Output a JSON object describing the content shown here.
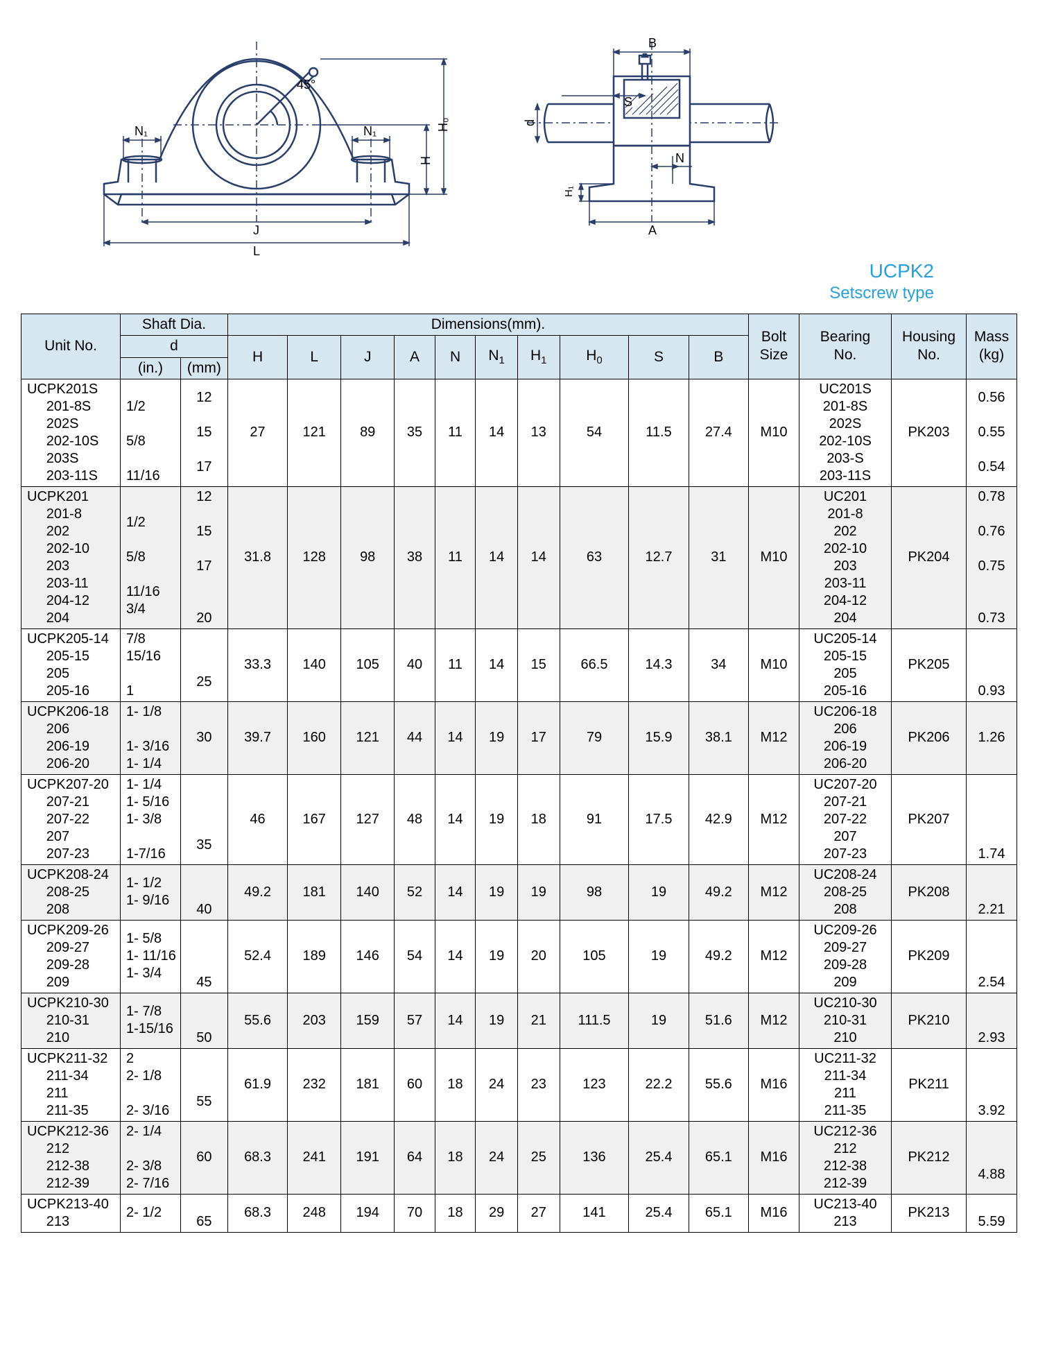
{
  "product": {
    "model": "UCPK2",
    "type": "Setscrew type",
    "model_color": "#29a0d8"
  },
  "diagram": {
    "line_color": "#2a3e6a",
    "line_width": 2,
    "front": {
      "labels": [
        "N1",
        "N1",
        "45°",
        "H",
        "H0",
        "J",
        "L"
      ]
    },
    "side": {
      "labels": [
        "B",
        "S",
        "N",
        "d",
        "A",
        "H1"
      ]
    }
  },
  "table": {
    "header_bg": "#d6e7f2",
    "alt_row_bg": "#f0f0f0",
    "headers": {
      "unit_no": "Unit No.",
      "shaft_dia": "Shaft Dia.",
      "d": "d",
      "in": "(in.)",
      "mm": "(mm)",
      "dimensions": "Dimensions(mm).",
      "dim_cols": [
        "H",
        "L",
        "J",
        "A",
        "N",
        "N1",
        "H1",
        "H0",
        "S",
        "B"
      ],
      "bolt_size": "Bolt\nSize",
      "bearing_no": "Bearing\nNo.",
      "housing_no": "Housing\nNo.",
      "mass": "Mass\n(kg)"
    },
    "rows": [
      {
        "unit": "UCPK201S\n     201-8S\n     202S\n     202-10S\n     203S\n     203-11S",
        "in": "\n1/2\n\n5/8\n\n11/16",
        "mm": "12\n\n15\n\n17\n",
        "dims": [
          "27",
          "121",
          "89",
          "35",
          "11",
          "14",
          "13",
          "54",
          "11.5",
          "27.4"
        ],
        "bolt": "M10",
        "bearing": "UC201S\n201-8S\n202S\n202-10S\n203-S\n203-11S",
        "housing": "PK203",
        "mass": "0.56\n\n0.55\n\n0.54\n"
      },
      {
        "unit": "UCPK201\n     201-8\n     202\n     202-10\n     203\n     203-11\n     204-12\n     204",
        "in": "\n1/2\n\n5/8\n\n11/16\n3/4\n",
        "mm": "12\n\n15\n\n17\n\n\n20",
        "dims": [
          "31.8",
          "128",
          "98",
          "38",
          "11",
          "14",
          "14",
          "63",
          "12.7",
          "31"
        ],
        "bolt": "M10",
        "bearing": "UC201\n201-8\n202\n202-10\n203\n203-11\n204-12\n204",
        "housing": "PK204",
        "mass": "0.78\n\n0.76\n\n0.75\n\n\n0.73"
      },
      {
        "unit": "UCPK205-14\n     205-15\n     205\n     205-16",
        "in": "7/8\n15/16\n\n1",
        "mm": "\n\n25\n",
        "dims": [
          "33.3",
          "140",
          "105",
          "40",
          "11",
          "14",
          "15",
          "66.5",
          "14.3",
          "34"
        ],
        "bolt": "M10",
        "bearing": "UC205-14\n205-15\n205\n205-16",
        "housing": "PK205",
        "mass": "\n\n\n0.93"
      },
      {
        "unit": "UCPK206-18\n     206\n     206-19\n     206-20",
        "in": "1- 1/8\n\n1- 3/16\n1- 1/4",
        "mm": "\n30\n\n",
        "dims": [
          "39.7",
          "160",
          "121",
          "44",
          "14",
          "19",
          "17",
          "79",
          "15.9",
          "38.1"
        ],
        "bolt": "M12",
        "bearing": "UC206-18\n206\n206-19\n206-20",
        "housing": "PK206",
        "mass": "\n1.26\n\n"
      },
      {
        "unit": "UCPK207-20\n     207-21\n     207-22\n     207\n     207-23",
        "in": "1- 1/4\n1- 5/16\n1- 3/8\n\n1-7/16",
        "mm": "\n\n\n35\n",
        "dims": [
          "46",
          "167",
          "127",
          "48",
          "14",
          "19",
          "18",
          "91",
          "17.5",
          "42.9"
        ],
        "bolt": "M12",
        "bearing": "UC207-20\n207-21\n207-22\n207\n207-23",
        "housing": "PK207",
        "mass": "\n\n\n\n1.74"
      },
      {
        "unit": "UCPK208-24\n     208-25\n     208",
        "in": "1- 1/2\n1- 9/16\n",
        "mm": "\n\n40",
        "dims": [
          "49.2",
          "181",
          "140",
          "52",
          "14",
          "19",
          "19",
          "98",
          "19",
          "49.2"
        ],
        "bolt": "M12",
        "bearing": "UC208-24\n208-25\n208",
        "housing": "PK208",
        "mass": "\n\n2.21"
      },
      {
        "unit": "UCPK209-26\n     209-27\n     209-28\n     209",
        "in": "1- 5/8\n1- 11/16\n1- 3/4\n",
        "mm": "\n\n\n45",
        "dims": [
          "52.4",
          "189",
          "146",
          "54",
          "14",
          "19",
          "20",
          "105",
          "19",
          "49.2"
        ],
        "bolt": "M12",
        "bearing": "UC209-26\n209-27\n209-28\n209",
        "housing": "PK209",
        "mass": "\n\n\n2.54"
      },
      {
        "unit": "UCPK210-30\n     210-31\n     210",
        "in": "1- 7/8\n1-15/16\n",
        "mm": "\n\n50",
        "dims": [
          "55.6",
          "203",
          "159",
          "57",
          "14",
          "19",
          "21",
          "111.5",
          "19",
          "51.6"
        ],
        "bolt": "M12",
        "bearing": "UC210-30\n210-31\n210",
        "housing": "PK210",
        "mass": "\n\n2.93"
      },
      {
        "unit": "UCPK211-32\n     211-34\n     211\n     211-35",
        "in": "2\n2- 1/8\n\n2- 3/16",
        "mm": "\n\n55\n",
        "dims": [
          "61.9",
          "232",
          "181",
          "60",
          "18",
          "24",
          "23",
          "123",
          "22.2",
          "55.6"
        ],
        "bolt": "M16",
        "bearing": "UC211-32\n211-34\n211\n211-35",
        "housing": "PK211",
        "mass": "\n\n\n3.92"
      },
      {
        "unit": "UCPK212-36\n     212\n     212-38\n     212-39",
        "in": "2- 1/4\n\n2- 3/8\n2- 7/16",
        "mm": "\n60\n\n",
        "dims": [
          "68.3",
          "241",
          "191",
          "64",
          "18",
          "24",
          "25",
          "136",
          "25.4",
          "65.1"
        ],
        "bolt": "M16",
        "bearing": "UC212-36\n212\n212-38\n212-39",
        "housing": "PK212",
        "mass": "\n\n4.88\n"
      },
      {
        "unit": "UCPK213-40\n     213",
        "in": "2- 1/2\n",
        "mm": "\n65",
        "dims": [
          "68.3",
          "248",
          "194",
          "70",
          "18",
          "29",
          "27",
          "141",
          "25.4",
          "65.1"
        ],
        "bolt": "M16",
        "bearing": "UC213-40\n213",
        "housing": "PK213",
        "mass": "\n5.59"
      }
    ]
  }
}
